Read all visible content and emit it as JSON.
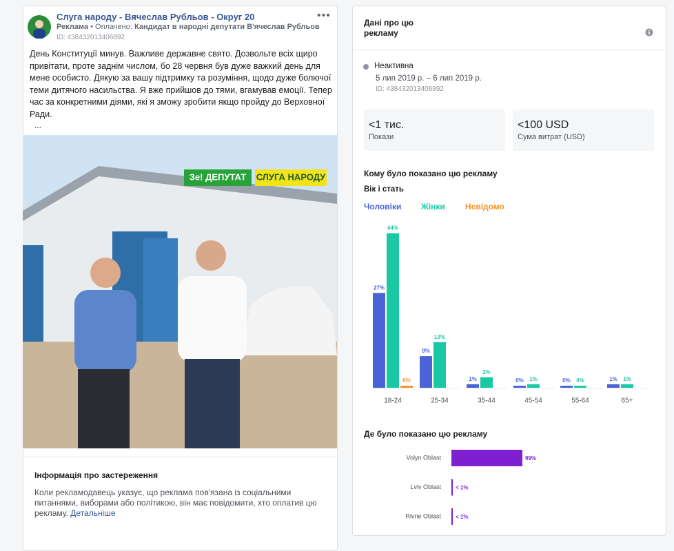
{
  "post": {
    "page_name": "Слуга народу - Вячеслав Рубльов - Округ 20",
    "ad_label": "Реклама",
    "paid_by_prefix": "• Оплачено:",
    "paid_by": "Кандидат в народні депутати В'ячеслав Рубльов",
    "id": "ID: 438432013406892",
    "text": "День Конституції минув. Важливе державне свято. Дозвольте всіх щиро привітати, проте заднім числом, бо 28 червня був дуже важкий день для мене особисто. Дякую за вашу підтримку та розуміння, щодо дуже болючої теми дитячого насильства. Я вже прийшов до тями, вгамував емоції. Тепер час за конкретними діями, які я зможу зробити якщо пройду до Верховної Ради.",
    "more": "...",
    "image_badge_1": "Зе! ДЕПУТАТ",
    "image_badge_2": "СЛУГА НАРОДУ",
    "disclaimer_title": "Інформація про застереження",
    "disclaimer_text": "Коли рекламодавець указує, що реклама пов'язана із соціальними питаннями, виборами або політикою, він має повідомити, хто оплатив цю рекламу.",
    "disclaimer_link": "Детальніше"
  },
  "panel": {
    "title": "Дані про цю рекламу",
    "status": "Неактивна",
    "dates": "5 лип 2019 р. – 6 лип 2019 р.",
    "id": "ID: 438432013406892",
    "impressions": "<1 тис.",
    "impressions_label": "Покази",
    "spend": "<100 USD",
    "spend_label": "Сума витрат (USD)",
    "audience_title": "Кому було показано цю рекламу",
    "age_gender_title": "Вік і стать",
    "region_title": "Де було показано цю рекламу"
  },
  "age_gender": {
    "type": "bar",
    "categories": [
      "18-24",
      "25-34",
      "35-44",
      "45-54",
      "55-64",
      "65+"
    ],
    "series": [
      {
        "name": "Чоловіки",
        "color": "#4a64d8",
        "values": [
          27,
          9,
          1,
          0,
          0,
          1
        ],
        "value_labels": [
          "27%",
          "9%",
          "1%",
          "0%",
          "0%",
          "1%"
        ]
      },
      {
        "name": "Жінки",
        "color": "#19c9a4",
        "values": [
          44,
          13,
          3,
          1,
          0,
          1
        ],
        "value_labels": [
          "44%",
          "13%",
          "3%",
          "1%",
          "0%",
          "1%"
        ]
      },
      {
        "name": "Невідомо",
        "color": "#f7932d",
        "values": [
          0,
          null,
          null,
          null,
          null,
          null
        ],
        "value_labels": [
          "0%",
          null,
          null,
          null,
          null,
          null
        ]
      }
    ]
  },
  "regions": {
    "type": "bar",
    "orientation": "horizontal",
    "color": "#7e1fd1",
    "categories": [
      "Volyn Oblast",
      "Lviv Oblast",
      "Rivne Oblast"
    ],
    "values": [
      99,
      0.5,
      0.5
    ],
    "value_labels": [
      "99%",
      "< 1%",
      "< 1%"
    ]
  }
}
